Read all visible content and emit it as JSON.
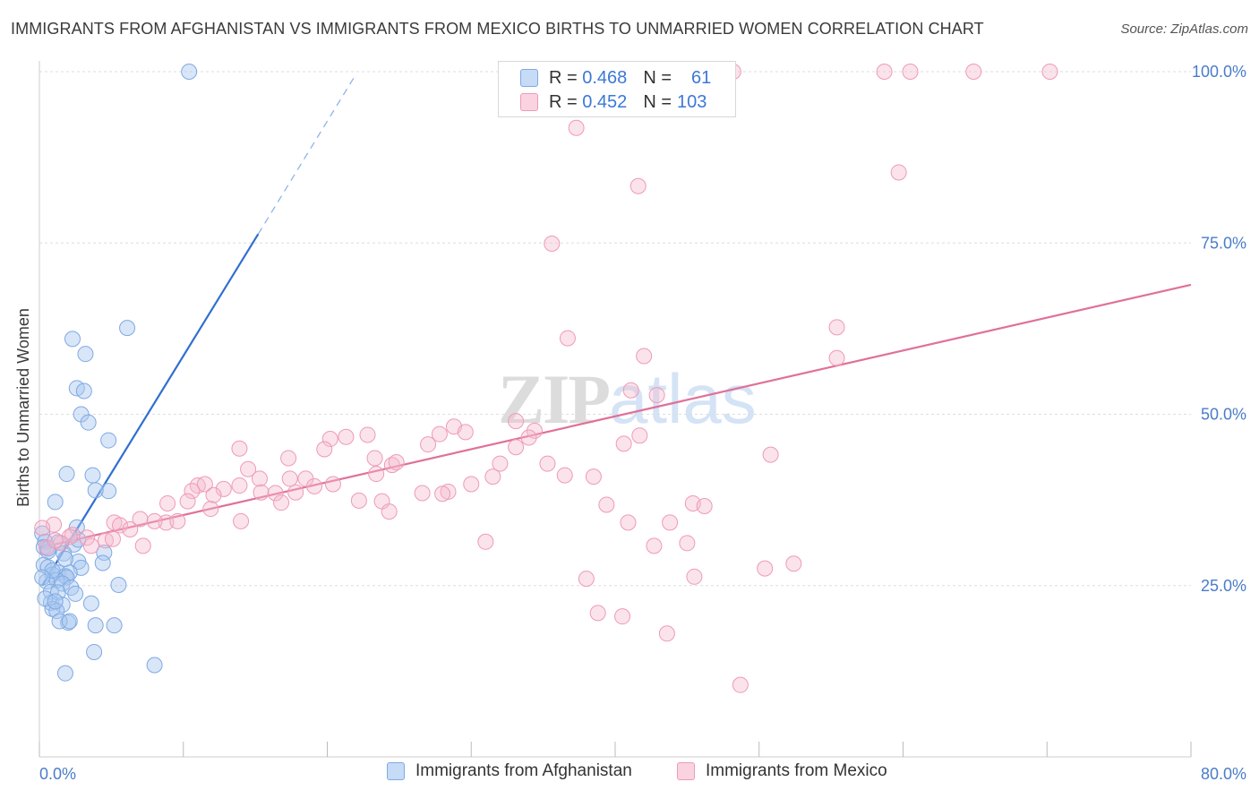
{
  "title": "IMMIGRANTS FROM AFGHANISTAN VS IMMIGRANTS FROM MEXICO BIRTHS TO UNMARRIED WOMEN CORRELATION CHART",
  "source": "Source: ZipAtlas.com",
  "watermark": {
    "zip": "ZIP",
    "atlas": "atlas"
  },
  "legend": {
    "rows": [
      {
        "r_label": "R =",
        "r_value": "0.468",
        "n_label": "N =",
        "n_value": "61",
        "color": "#a8c8f0"
      },
      {
        "r_label": "R =",
        "r_value": "0.452",
        "n_label": "N =",
        "n_value": "103",
        "color": "#f5b8cc"
      }
    ]
  },
  "bottom_legend": [
    {
      "label": "Immigrants from Afghanistan",
      "color": "#a8c8f0"
    },
    {
      "label": "Immigrants from Mexico",
      "color": "#f5b8cc"
    }
  ],
  "chart_data": {
    "type": "scatter",
    "title": "IMMIGRANTS FROM AFGHANISTAN VS IMMIGRANTS FROM MEXICO BIRTHS TO UNMARRIED WOMEN CORRELATION CHART",
    "xlabel": "",
    "ylabel": "Births to Unmarried Women",
    "xlim": [
      0,
      80
    ],
    "ylim": [
      0,
      105
    ],
    "x_tick_labels": [
      "0.0%",
      "80.0%"
    ],
    "y_ticks": [
      25,
      50,
      75,
      100
    ],
    "y_tick_labels": [
      "25.0%",
      "50.0%",
      "75.0%",
      "100.0%"
    ],
    "grid": true,
    "series": [
      {
        "name": "Immigrants from Afghanistan",
        "color": "#6fa3e6",
        "trend": {
          "x": [
            0.2,
            15.2
          ],
          "y": [
            25.0,
            76.3
          ],
          "dashed_to": [
            21.9,
            99.3
          ]
        },
        "points": [
          [
            10.4,
            100.0
          ],
          [
            6.1,
            62.6
          ],
          [
            2.3,
            61.0
          ],
          [
            3.2,
            58.8
          ],
          [
            2.6,
            53.8
          ],
          [
            3.1,
            53.4
          ],
          [
            2.9,
            50.0
          ],
          [
            3.4,
            48.8
          ],
          [
            4.8,
            46.2
          ],
          [
            1.9,
            41.3
          ],
          [
            3.7,
            41.1
          ],
          [
            4.8,
            38.8
          ],
          [
            3.9,
            38.9
          ],
          [
            1.1,
            37.2
          ],
          [
            0.2,
            32.6
          ],
          [
            0.4,
            31.4
          ],
          [
            2.4,
            31.0
          ],
          [
            0.3,
            30.6
          ],
          [
            0.6,
            30.0
          ],
          [
            1.3,
            31.3
          ],
          [
            2.7,
            31.7
          ],
          [
            2.6,
            33.5
          ],
          [
            4.5,
            29.8
          ],
          [
            4.4,
            28.3
          ],
          [
            0.3,
            28.0
          ],
          [
            0.6,
            27.7
          ],
          [
            2.7,
            28.5
          ],
          [
            2.9,
            27.6
          ],
          [
            1.3,
            26.9
          ],
          [
            0.9,
            26.6
          ],
          [
            1.8,
            26.4
          ],
          [
            2.1,
            26.9
          ],
          [
            1.9,
            26.2
          ],
          [
            1.2,
            25.8
          ],
          [
            1.6,
            25.3
          ],
          [
            0.5,
            25.6
          ],
          [
            0.8,
            24.1
          ],
          [
            1.3,
            24.0
          ],
          [
            5.5,
            25.1
          ],
          [
            0.8,
            22.5
          ],
          [
            1.6,
            22.2
          ],
          [
            3.6,
            22.4
          ],
          [
            0.9,
            21.6
          ],
          [
            1.2,
            21.3
          ],
          [
            2.0,
            19.6
          ],
          [
            1.4,
            19.8
          ],
          [
            2.1,
            19.8
          ],
          [
            3.9,
            19.2
          ],
          [
            5.2,
            19.2
          ],
          [
            3.8,
            15.3
          ],
          [
            1.8,
            12.2
          ],
          [
            8.0,
            13.4
          ],
          [
            0.6,
            30.4
          ],
          [
            1.7,
            29.7
          ],
          [
            0.9,
            27.2
          ],
          [
            2.2,
            24.7
          ],
          [
            0.4,
            23.1
          ],
          [
            1.1,
            22.7
          ],
          [
            1.8,
            28.9
          ],
          [
            0.2,
            26.2
          ],
          [
            2.5,
            23.8
          ]
        ]
      },
      {
        "name": "Immigrants from Mexico",
        "color": "#f09ab8",
        "trend": {
          "x": [
            0.0,
            80.0
          ],
          "y": [
            30.5,
            68.9
          ]
        },
        "points": [
          [
            48.2,
            100.0
          ],
          [
            58.7,
            100.0
          ],
          [
            60.5,
            100.0
          ],
          [
            64.9,
            100.0
          ],
          [
            70.2,
            100.0
          ],
          [
            37.3,
            91.8
          ],
          [
            59.7,
            85.3
          ],
          [
            41.6,
            83.3
          ],
          [
            35.6,
            74.9
          ],
          [
            55.4,
            58.2
          ],
          [
            55.4,
            62.7
          ],
          [
            36.7,
            61.1
          ],
          [
            42.0,
            58.5
          ],
          [
            41.1,
            53.5
          ],
          [
            42.9,
            52.8
          ],
          [
            33.1,
            49.0
          ],
          [
            28.8,
            48.2
          ],
          [
            34.4,
            47.6
          ],
          [
            27.8,
            47.1
          ],
          [
            29.6,
            47.4
          ],
          [
            34.0,
            46.6
          ],
          [
            40.6,
            45.7
          ],
          [
            41.7,
            46.9
          ],
          [
            27.0,
            45.6
          ],
          [
            33.1,
            45.2
          ],
          [
            21.3,
            46.7
          ],
          [
            20.2,
            46.4
          ],
          [
            22.8,
            47.0
          ],
          [
            19.8,
            44.9
          ],
          [
            13.9,
            45.0
          ],
          [
            23.3,
            43.6
          ],
          [
            24.5,
            42.6
          ],
          [
            17.3,
            43.6
          ],
          [
            32.0,
            42.8
          ],
          [
            35.3,
            42.8
          ],
          [
            36.5,
            41.1
          ],
          [
            31.5,
            40.9
          ],
          [
            38.5,
            40.9
          ],
          [
            50.8,
            44.1
          ],
          [
            14.5,
            42.0
          ],
          [
            15.3,
            40.6
          ],
          [
            18.5,
            40.6
          ],
          [
            23.4,
            41.3
          ],
          [
            19.1,
            39.5
          ],
          [
            20.4,
            39.8
          ],
          [
            11.0,
            39.6
          ],
          [
            11.5,
            39.8
          ],
          [
            12.8,
            39.1
          ],
          [
            13.9,
            39.6
          ],
          [
            15.4,
            38.6
          ],
          [
            16.4,
            38.5
          ],
          [
            17.8,
            38.6
          ],
          [
            12.1,
            38.2
          ],
          [
            23.8,
            37.3
          ],
          [
            26.6,
            38.5
          ],
          [
            28.4,
            38.7
          ],
          [
            10.6,
            38.8
          ],
          [
            16.8,
            37.1
          ],
          [
            8.9,
            37.0
          ],
          [
            10.3,
            37.3
          ],
          [
            11.9,
            36.2
          ],
          [
            24.3,
            35.8
          ],
          [
            45.4,
            37.0
          ],
          [
            7.0,
            34.7
          ],
          [
            8.8,
            34.2
          ],
          [
            9.6,
            34.4
          ],
          [
            5.2,
            34.2
          ],
          [
            5.6,
            33.8
          ],
          [
            6.3,
            33.2
          ],
          [
            1.0,
            33.9
          ],
          [
            0.2,
            33.4
          ],
          [
            2.3,
            32.4
          ],
          [
            3.3,
            32.0
          ],
          [
            4.6,
            31.6
          ],
          [
            5.1,
            31.8
          ],
          [
            2.1,
            32.1
          ],
          [
            1.5,
            31.2
          ],
          [
            3.6,
            30.8
          ],
          [
            7.2,
            30.8
          ],
          [
            0.5,
            30.6
          ],
          [
            1.1,
            31.6
          ],
          [
            40.9,
            34.2
          ],
          [
            43.8,
            34.2
          ],
          [
            42.7,
            30.8
          ],
          [
            45.0,
            31.2
          ],
          [
            31.0,
            31.4
          ],
          [
            38.0,
            26.0
          ],
          [
            45.5,
            26.3
          ],
          [
            50.4,
            27.5
          ],
          [
            52.4,
            28.2
          ],
          [
            38.8,
            21.0
          ],
          [
            40.5,
            20.5
          ],
          [
            43.6,
            18.0
          ],
          [
            48.7,
            10.5
          ],
          [
            46.2,
            36.6
          ],
          [
            39.4,
            36.8
          ],
          [
            28.0,
            38.4
          ],
          [
            22.2,
            37.4
          ],
          [
            14.0,
            34.4
          ],
          [
            8.0,
            34.4
          ],
          [
            17.4,
            40.6
          ],
          [
            24.8,
            43.0
          ],
          [
            30.0,
            39.8
          ]
        ]
      }
    ]
  }
}
